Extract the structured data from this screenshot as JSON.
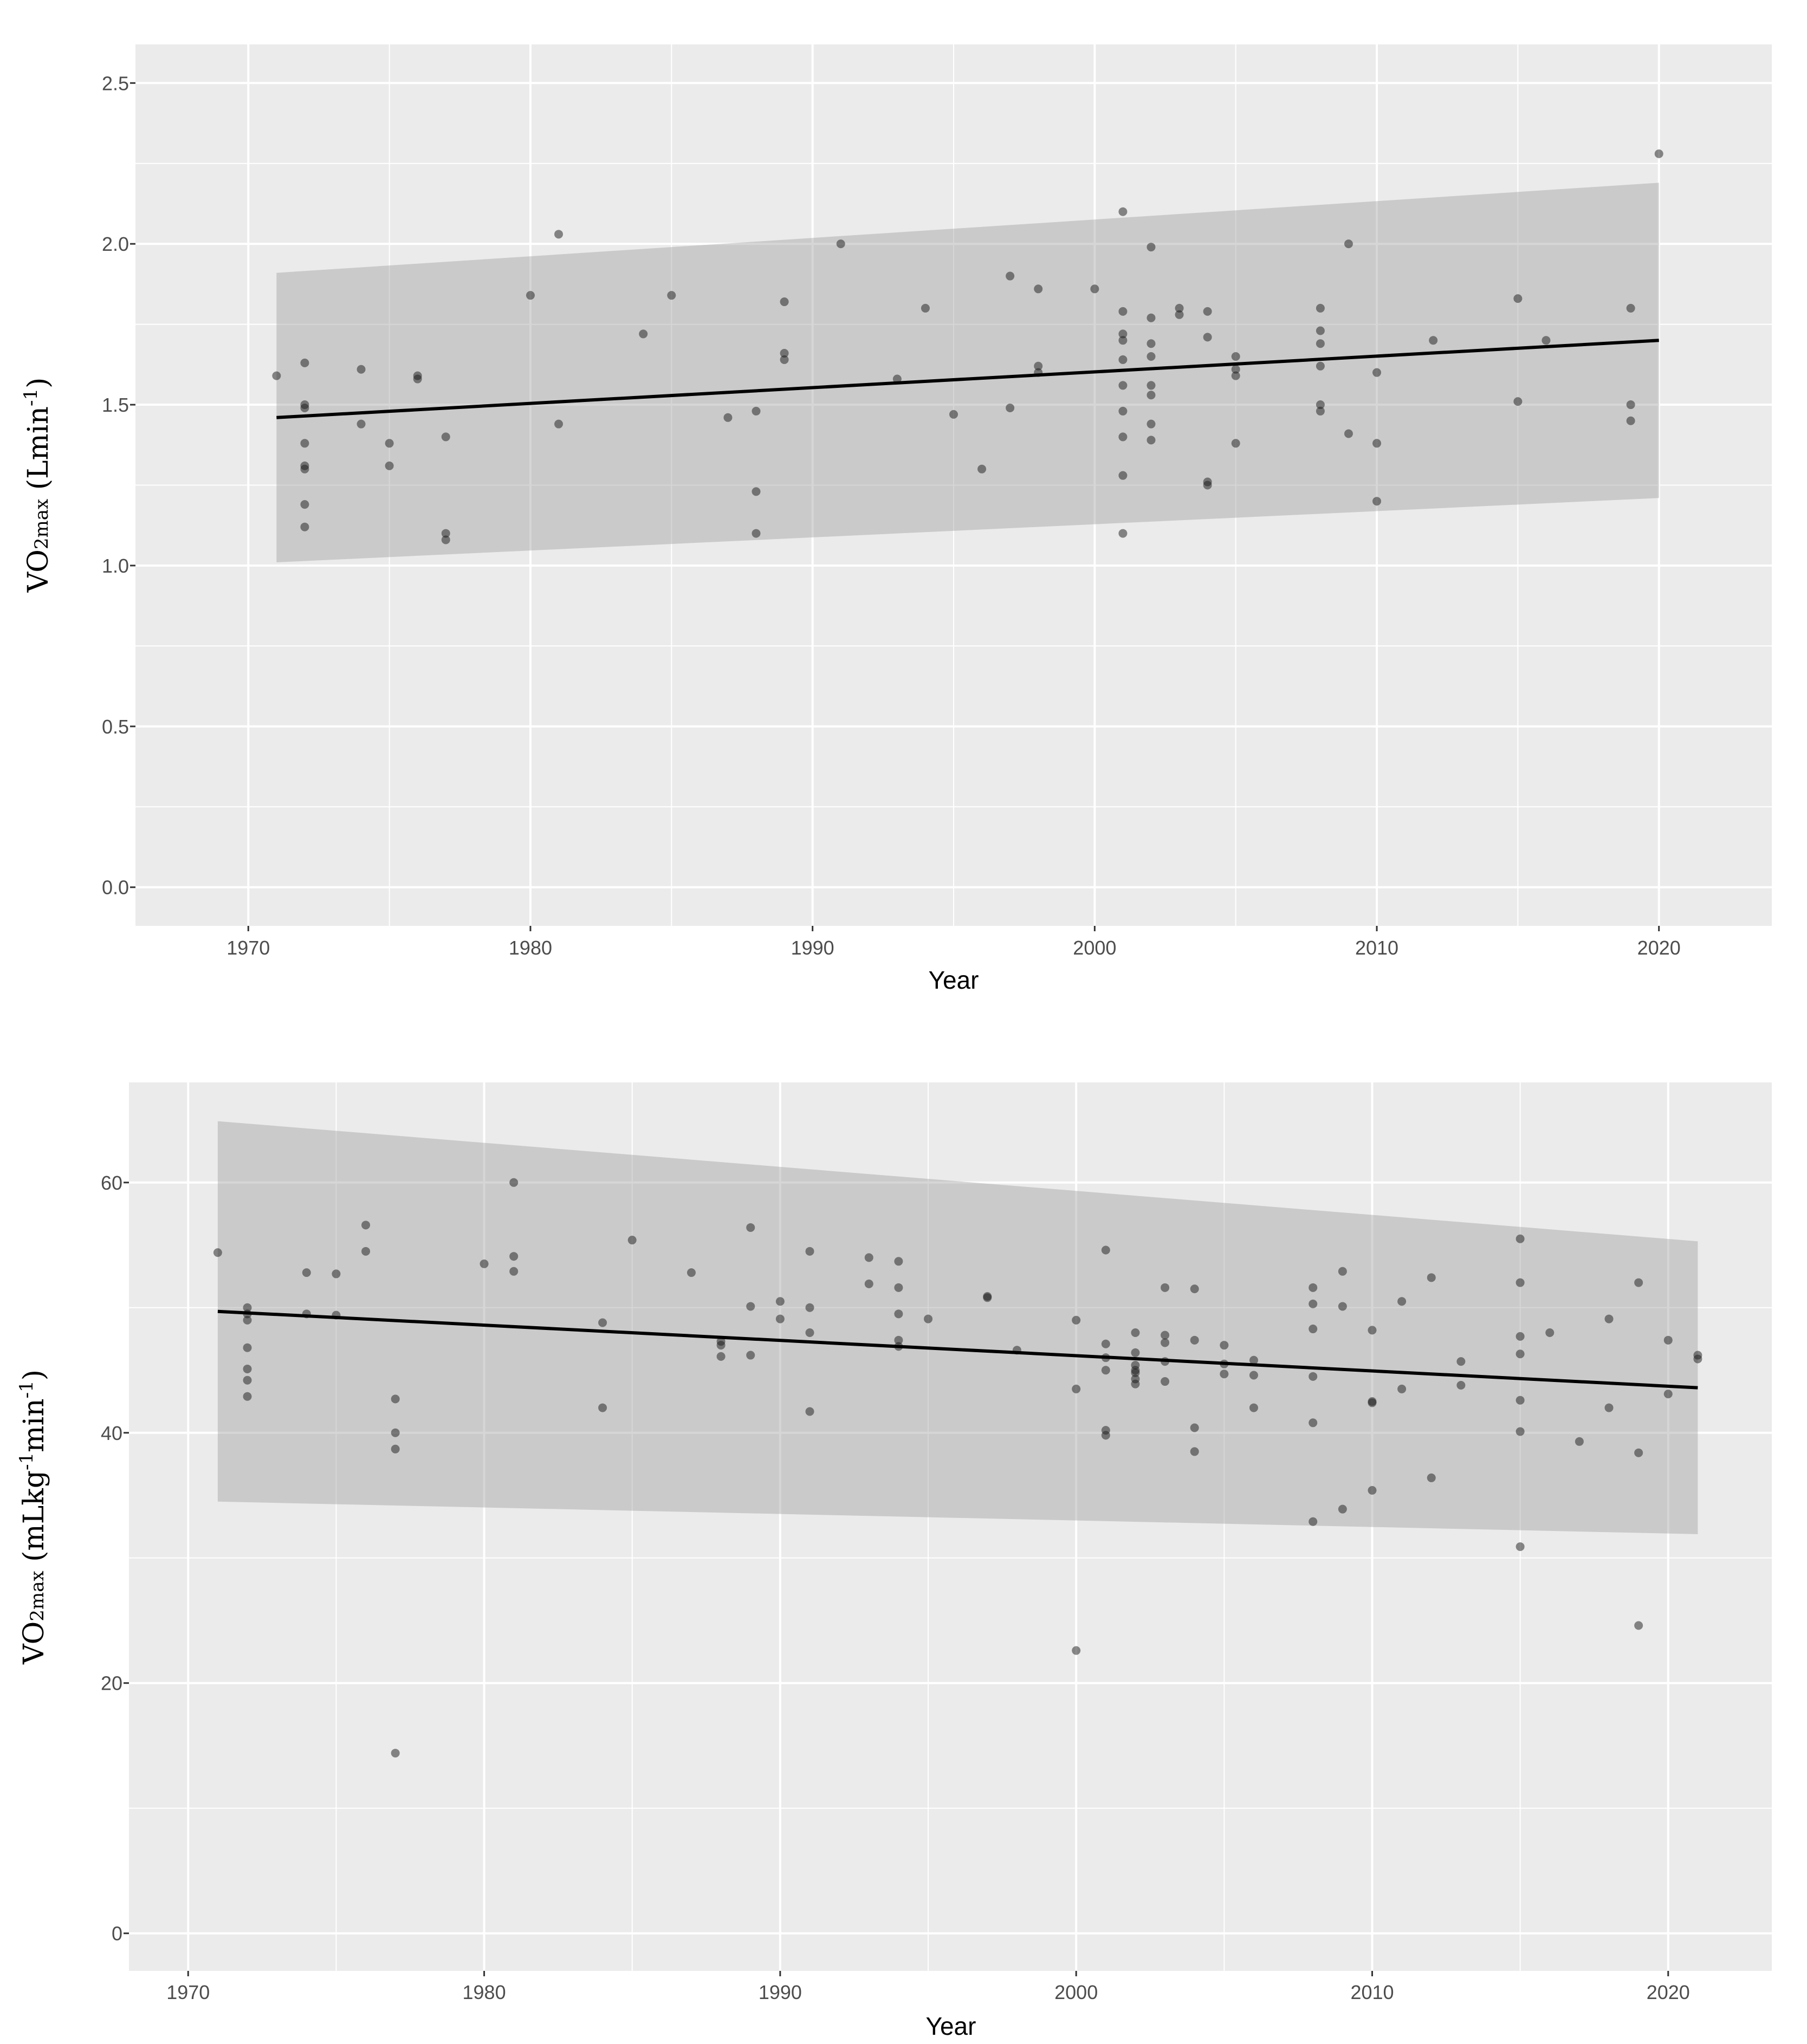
{
  "chart_data": [
    {
      "type": "scatter",
      "fit": "linear",
      "panel_bg": "#ebebeb",
      "grid_color": "#ffffff",
      "point_color": "#1a1a1a",
      "band_color": "#9e9e9e",
      "line_color": "#000000",
      "xlabel": "Year",
      "ylabel": {
        "main": "VO",
        "sub": "2max",
        "unit": " (Lmin",
        "sup": "-1",
        "close": ")"
      },
      "xlim": [
        1966,
        2024
      ],
      "ylim": [
        -0.12,
        2.62
      ],
      "xticks": [
        1970,
        1980,
        1990,
        2000,
        2010,
        2020
      ],
      "yticks": [
        0.0,
        0.5,
        1.0,
        1.5,
        2.0,
        2.5
      ],
      "ytick_labels": [
        "0.0",
        "0.5",
        "1.0",
        "1.5",
        "2.0",
        "2.5"
      ],
      "fit_line": {
        "x": [
          1971,
          2020
        ],
        "y": [
          1.46,
          1.7
        ]
      },
      "band": {
        "x": [
          1971,
          2020
        ],
        "upper": [
          1.91,
          2.19
        ],
        "lower": [
          1.01,
          1.21
        ]
      },
      "points": [
        [
          1971,
          1.59
        ],
        [
          1972,
          1.63
        ],
        [
          1972,
          1.5
        ],
        [
          1972,
          1.49
        ],
        [
          1972,
          1.38
        ],
        [
          1972,
          1.31
        ],
        [
          1972,
          1.3
        ],
        [
          1972,
          1.19
        ],
        [
          1972,
          1.12
        ],
        [
          1974,
          1.61
        ],
        [
          1974,
          1.44
        ],
        [
          1975,
          1.38
        ],
        [
          1975,
          1.31
        ],
        [
          1976,
          1.59
        ],
        [
          1976,
          1.58
        ],
        [
          1977,
          1.4
        ],
        [
          1977,
          1.1
        ],
        [
          1977,
          1.08
        ],
        [
          1980,
          1.84
        ],
        [
          1981,
          2.03
        ],
        [
          1981,
          1.44
        ],
        [
          1984,
          1.72
        ],
        [
          1985,
          1.84
        ],
        [
          1987,
          1.46
        ],
        [
          1988,
          1.48
        ],
        [
          1988,
          1.23
        ],
        [
          1988,
          1.1
        ],
        [
          1989,
          1.82
        ],
        [
          1989,
          1.66
        ],
        [
          1989,
          1.64
        ],
        [
          1991,
          2.0
        ],
        [
          1993,
          1.58
        ],
        [
          1994,
          1.8
        ],
        [
          1995,
          1.47
        ],
        [
          1996,
          1.3
        ],
        [
          1997,
          1.9
        ],
        [
          1997,
          1.49
        ],
        [
          1998,
          1.86
        ],
        [
          1998,
          1.62
        ],
        [
          1998,
          1.6
        ],
        [
          2000,
          1.86
        ],
        [
          2001,
          2.1
        ],
        [
          2001,
          1.79
        ],
        [
          2001,
          1.72
        ],
        [
          2001,
          1.7
        ],
        [
          2001,
          1.64
        ],
        [
          2001,
          1.56
        ],
        [
          2001,
          1.48
        ],
        [
          2001,
          1.4
        ],
        [
          2001,
          1.28
        ],
        [
          2001,
          1.1
        ],
        [
          2002,
          1.99
        ],
        [
          2002,
          1.77
        ],
        [
          2002,
          1.69
        ],
        [
          2002,
          1.65
        ],
        [
          2002,
          1.56
        ],
        [
          2002,
          1.53
        ],
        [
          2002,
          1.44
        ],
        [
          2002,
          1.39
        ],
        [
          2003,
          1.8
        ],
        [
          2003,
          1.78
        ],
        [
          2004,
          1.79
        ],
        [
          2004,
          1.71
        ],
        [
          2004,
          1.26
        ],
        [
          2004,
          1.25
        ],
        [
          2005,
          1.65
        ],
        [
          2005,
          1.61
        ],
        [
          2005,
          1.59
        ],
        [
          2005,
          1.38
        ],
        [
          2008,
          1.8
        ],
        [
          2008,
          1.73
        ],
        [
          2008,
          1.69
        ],
        [
          2008,
          1.62
        ],
        [
          2008,
          1.5
        ],
        [
          2008,
          1.48
        ],
        [
          2009,
          2.0
        ],
        [
          2009,
          1.41
        ],
        [
          2010,
          1.6
        ],
        [
          2010,
          1.38
        ],
        [
          2010,
          1.2
        ],
        [
          2012,
          1.7
        ],
        [
          2015,
          1.83
        ],
        [
          2015,
          1.51
        ],
        [
          2016,
          1.7
        ],
        [
          2019,
          1.8
        ],
        [
          2019,
          1.5
        ],
        [
          2019,
          1.45
        ],
        [
          2020,
          2.28
        ]
      ]
    },
    {
      "type": "scatter",
      "fit": "linear",
      "panel_bg": "#ebebeb",
      "grid_color": "#ffffff",
      "point_color": "#1a1a1a",
      "band_color": "#9e9e9e",
      "line_color": "#000000",
      "xlabel": "Year",
      "ylabel": {
        "main": "VO",
        "sub": "2max",
        "unit": " (mLkg",
        "sup": "-1",
        "mid": "min",
        "sup2": "-1",
        "close": ")"
      },
      "xlim": [
        1968,
        2023.5
      ],
      "ylim": [
        -3,
        68
      ],
      "xticks": [
        1970,
        1980,
        1990,
        2000,
        2010,
        2020
      ],
      "yticks": [
        0,
        20,
        40,
        60
      ],
      "ytick_labels": [
        "0",
        "20",
        "40",
        "60"
      ],
      "fit_line": {
        "x": [
          1971,
          2021
        ],
        "y": [
          49.7,
          43.6
        ]
      },
      "band": {
        "x": [
          1971,
          2021
        ],
        "upper": [
          64.9,
          55.3
        ],
        "lower": [
          34.5,
          31.9
        ]
      },
      "points": [
        [
          1971,
          54.4
        ],
        [
          1972,
          50.0
        ],
        [
          1972,
          49.5
        ],
        [
          1972,
          49.0
        ],
        [
          1972,
          46.8
        ],
        [
          1972,
          45.1
        ],
        [
          1972,
          44.2
        ],
        [
          1972,
          42.9
        ],
        [
          1974,
          52.8
        ],
        [
          1974,
          49.5
        ],
        [
          1975,
          52.7
        ],
        [
          1975,
          49.4
        ],
        [
          1976,
          56.6
        ],
        [
          1976,
          54.5
        ],
        [
          1977,
          42.7
        ],
        [
          1977,
          40.0
        ],
        [
          1977,
          38.7
        ],
        [
          1977,
          14.4
        ],
        [
          1980,
          53.5
        ],
        [
          1981,
          60.0
        ],
        [
          1981,
          54.1
        ],
        [
          1981,
          52.9
        ],
        [
          1984,
          48.8
        ],
        [
          1984,
          42.0
        ],
        [
          1985,
          55.4
        ],
        [
          1987,
          52.8
        ],
        [
          1988,
          47.3
        ],
        [
          1988,
          47.0
        ],
        [
          1988,
          46.1
        ],
        [
          1989,
          56.4
        ],
        [
          1989,
          50.1
        ],
        [
          1989,
          46.2
        ],
        [
          1990,
          50.5
        ],
        [
          1990,
          49.1
        ],
        [
          1991,
          54.5
        ],
        [
          1991,
          50.0
        ],
        [
          1991,
          48.0
        ],
        [
          1991,
          41.7
        ],
        [
          1993,
          54.0
        ],
        [
          1993,
          51.9
        ],
        [
          1994,
          53.7
        ],
        [
          1994,
          51.6
        ],
        [
          1994,
          49.5
        ],
        [
          1994,
          47.4
        ],
        [
          1994,
          46.9
        ],
        [
          1995,
          49.1
        ],
        [
          1997,
          50.9
        ],
        [
          1997,
          50.8
        ],
        [
          1998,
          46.6
        ],
        [
          2000,
          49.0
        ],
        [
          2000,
          43.5
        ],
        [
          2000,
          22.6
        ],
        [
          2001,
          54.6
        ],
        [
          2001,
          47.1
        ],
        [
          2001,
          46.0
        ],
        [
          2001,
          45.0
        ],
        [
          2001,
          40.2
        ],
        [
          2001,
          39.8
        ],
        [
          2002,
          48.0
        ],
        [
          2002,
          46.4
        ],
        [
          2002,
          45.4
        ],
        [
          2002,
          45.0
        ],
        [
          2002,
          44.8
        ],
        [
          2002,
          44.3
        ],
        [
          2002,
          43.9
        ],
        [
          2003,
          51.6
        ],
        [
          2003,
          47.8
        ],
        [
          2003,
          47.2
        ],
        [
          2003,
          45.7
        ],
        [
          2003,
          44.1
        ],
        [
          2004,
          51.5
        ],
        [
          2004,
          47.4
        ],
        [
          2004,
          40.4
        ],
        [
          2004,
          38.5
        ],
        [
          2005,
          47.0
        ],
        [
          2005,
          45.5
        ],
        [
          2005,
          44.7
        ],
        [
          2006,
          45.8
        ],
        [
          2006,
          44.6
        ],
        [
          2006,
          42.0
        ],
        [
          2008,
          51.6
        ],
        [
          2008,
          50.3
        ],
        [
          2008,
          48.3
        ],
        [
          2008,
          44.5
        ],
        [
          2008,
          40.8
        ],
        [
          2008,
          32.9
        ],
        [
          2009,
          52.9
        ],
        [
          2009,
          50.1
        ],
        [
          2009,
          33.9
        ],
        [
          2010,
          48.2
        ],
        [
          2010,
          42.5
        ],
        [
          2010,
          42.4
        ],
        [
          2010,
          35.4
        ],
        [
          2011,
          50.5
        ],
        [
          2011,
          43.5
        ],
        [
          2012,
          52.4
        ],
        [
          2012,
          36.4
        ],
        [
          2013,
          45.7
        ],
        [
          2013,
          43.8
        ],
        [
          2015,
          55.5
        ],
        [
          2015,
          52.0
        ],
        [
          2015,
          47.7
        ],
        [
          2015,
          46.3
        ],
        [
          2015,
          42.6
        ],
        [
          2015,
          40.1
        ],
        [
          2015,
          30.9
        ],
        [
          2016,
          48.0
        ],
        [
          2017,
          39.3
        ],
        [
          2018,
          49.1
        ],
        [
          2018,
          42.0
        ],
        [
          2019,
          52.0
        ],
        [
          2019,
          38.4
        ],
        [
          2019,
          24.6
        ],
        [
          2020,
          47.4
        ],
        [
          2020,
          43.1
        ],
        [
          2021,
          46.2
        ],
        [
          2021,
          45.9
        ]
      ]
    }
  ]
}
